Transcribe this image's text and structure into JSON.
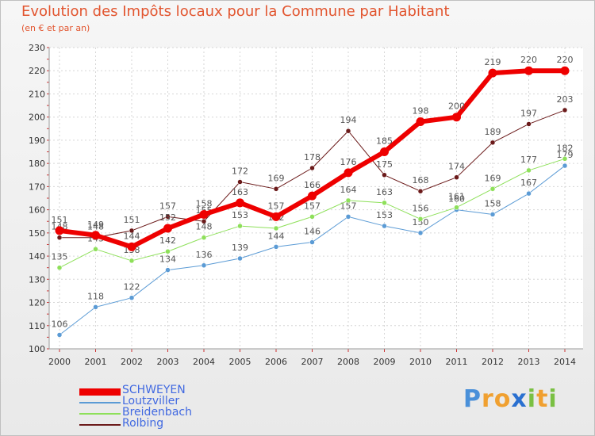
{
  "header": {
    "title": "Evolution des Impôts locaux pour la Commune par Habitant",
    "subtitle": "(en € et par an)"
  },
  "chart_data": {
    "type": "line",
    "title": "Evolution des Impôts locaux pour la Commune par Habitant",
    "subtitle": "(en € et par an)",
    "xlabel": "",
    "ylabel": "",
    "ylim": [
      100,
      230
    ],
    "yticks": [
      100,
      110,
      120,
      130,
      140,
      150,
      160,
      170,
      180,
      190,
      200,
      210,
      220,
      230
    ],
    "categories": [
      "2000",
      "2001",
      "2002",
      "2003",
      "2004",
      "2005",
      "2006",
      "2007",
      "2008",
      "2009",
      "2010",
      "2011",
      "2012",
      "2013",
      "2014"
    ],
    "grid": true,
    "legend_position": "bottom-left",
    "series": [
      {
        "name": "Rolbing",
        "color": "#6b1a1a",
        "width": 1,
        "values": [
          148,
          148,
          151,
          157,
          155,
          172,
          169,
          178,
          194,
          175,
          168,
          174,
          189,
          197,
          203
        ]
      },
      {
        "name": "Loutzviller",
        "color": "#5b9bd5",
        "width": 1,
        "values": [
          106,
          118,
          122,
          134,
          136,
          139,
          144,
          146,
          157,
          153,
          150,
          160,
          158,
          167,
          179
        ]
      },
      {
        "name": "Breidenbach",
        "color": "#8ee05a",
        "width": 1,
        "values": [
          135,
          143,
          138,
          142,
          148,
          153,
          152,
          157,
          164,
          163,
          156,
          161,
          169,
          177,
          182
        ]
      },
      {
        "name": "SCHWEYEN",
        "color": "#ee0000",
        "width": 6,
        "values": [
          151,
          149,
          144,
          152,
          158,
          163,
          157,
          166,
          176,
          185,
          198,
          200,
          219,
          220,
          220
        ]
      }
    ]
  },
  "legend": {
    "items": [
      {
        "label": "SCHWEYEN",
        "color": "#ee0000",
        "thickness": 9
      },
      {
        "label": "Loutzviller",
        "color": "#5b9bd5",
        "thickness": 2
      },
      {
        "label": "Breidenbach",
        "color": "#8ee05a",
        "thickness": 2
      },
      {
        "label": "Rolbing",
        "color": "#6b1a1a",
        "thickness": 2
      }
    ]
  },
  "logo": {
    "letters": [
      "P",
      "r",
      "o",
      "x",
      "i",
      "t",
      "i"
    ],
    "colors": [
      "#4a90d9",
      "#f0a030",
      "#f0a030",
      "#2a70d0",
      "#7ac043",
      "#f0a030",
      "#7ac043"
    ]
  }
}
